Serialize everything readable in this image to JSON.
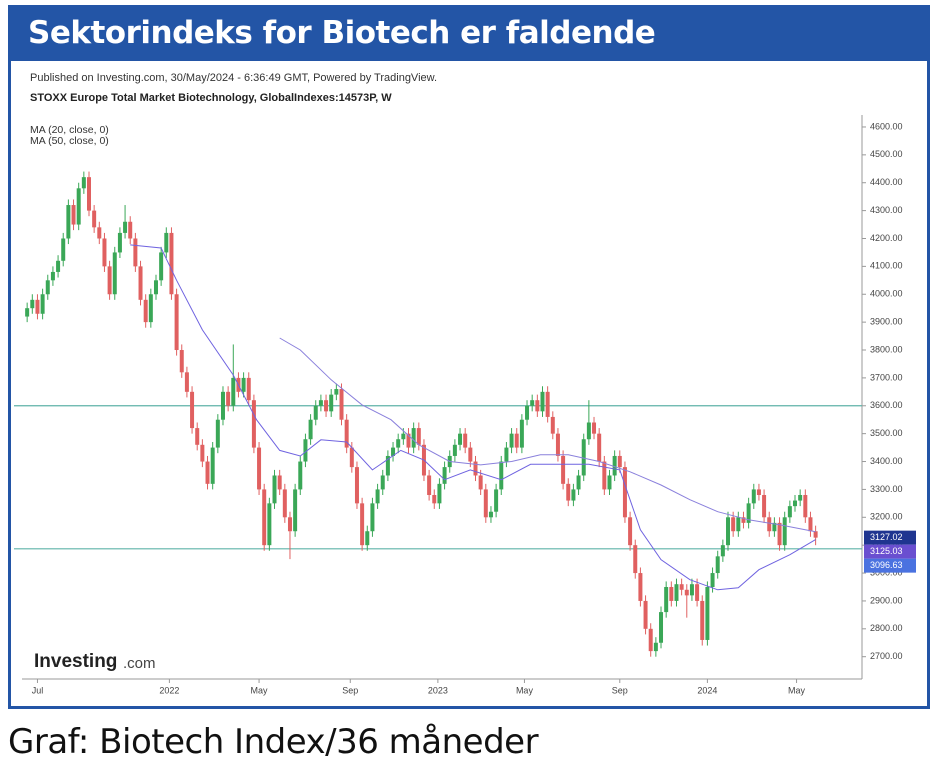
{
  "header": {
    "title": "Sektorindeks for Biotech er faldende"
  },
  "caption": "Graf: Biotech Index/36 måneder",
  "chart_data": {
    "type": "candlestick",
    "subtitle": "Published on Investing.com, 30/May/2024 - 6:36:49 GMT, Powered by TradingView.",
    "title": "STOXX Europe Total Market Biotechnology, GlobalIndexes:14573P, W",
    "logo": "Investing",
    "logo_suffix": ".com",
    "up_color": "#3aa757",
    "down_color": "#e06060",
    "xlim": [
      -1,
      162
    ],
    "ylim": [
      2620,
      4625
    ],
    "xticks": [
      {
        "value": 2,
        "label": "Jul"
      },
      {
        "value": 27.6,
        "label": "2022"
      },
      {
        "value": 45,
        "label": "May"
      },
      {
        "value": 62.7,
        "label": "Sep"
      },
      {
        "value": 79.7,
        "label": "2023"
      },
      {
        "value": 96.5,
        "label": "May"
      },
      {
        "value": 115,
        "label": "Sep"
      },
      {
        "value": 132,
        "label": "2024"
      },
      {
        "value": 149.3,
        "label": "May"
      }
    ],
    "yticks": [
      {
        "value": 2700,
        "label": "2700.00"
      },
      {
        "value": 2800,
        "label": "2800.00"
      },
      {
        "value": 2900,
        "label": "2900.00"
      },
      {
        "value": 3000,
        "label": "3000.00"
      },
      {
        "value": 3100,
        "label": "3100.00"
      },
      {
        "value": 3200,
        "label": "3200.00"
      },
      {
        "value": 3300,
        "label": "3300.00"
      },
      {
        "value": 3400,
        "label": "3400.00"
      },
      {
        "value": 3500,
        "label": "3500.00"
      },
      {
        "value": 3600,
        "label": "3600.00"
      },
      {
        "value": 3700,
        "label": "3700.00"
      },
      {
        "value": 3800,
        "label": "3800.00"
      },
      {
        "value": 3900,
        "label": "3900.00"
      },
      {
        "value": 4000,
        "label": "4000.00"
      },
      {
        "value": 4100,
        "label": "4100.00"
      },
      {
        "value": 4200,
        "label": "4200.00"
      },
      {
        "value": 4300,
        "label": "4300.00"
      },
      {
        "value": 4400,
        "label": "4400.00"
      },
      {
        "value": 4500,
        "label": "4500.00"
      },
      {
        "value": 4600,
        "label": "4600.00"
      }
    ],
    "hlines": [
      3600,
      3087
    ],
    "hline_color": "#5fb3a8",
    "price_labels": [
      {
        "value": 3127.02,
        "color": "#1f3590"
      },
      {
        "value": 3125.03,
        "color": "#6a4fd0"
      },
      {
        "value": 3096.63,
        "color": "#4a72e0"
      }
    ],
    "series": [
      {
        "name": "MA (20, close, 0)",
        "color": "#6f63e0",
        "x": [
          20,
          26,
          29,
          34,
          40,
          44.5,
          49,
          53,
          57,
          62,
          67,
          72.5,
          77,
          81,
          86,
          92,
          97.7,
          103,
          109,
          115,
          119,
          123,
          128.6,
          134,
          138,
          142,
          148,
          153
        ],
        "values": [
          4177,
          4166,
          4050,
          3872,
          3710,
          3550,
          3440,
          3420,
          3478,
          3470,
          3370,
          3440,
          3405,
          3335,
          3370,
          3335,
          3390,
          3390,
          3390,
          3370,
          3155,
          3048,
          2976,
          2940,
          2947,
          3012,
          3066,
          3120
        ]
      },
      {
        "name": "MA (50, close, 0)",
        "color": "#8a80dc",
        "x": [
          49,
          53,
          59,
          65,
          70.6,
          76,
          82,
          88,
          94,
          99.6,
          105,
          111,
          117,
          123,
          128.6,
          134,
          140,
          146,
          153
        ],
        "values": [
          3843,
          3800,
          3693,
          3603,
          3550,
          3460,
          3400,
          3388,
          3400,
          3424,
          3424,
          3400,
          3363,
          3316,
          3263,
          3220,
          3191,
          3173,
          3148
        ]
      }
    ],
    "candles": [
      [
        3920,
        3970,
        3900,
        3950
      ],
      [
        3950,
        4000,
        3930,
        3980
      ],
      [
        3980,
        4000,
        3910,
        3930
      ],
      [
        3930,
        4020,
        3910,
        4000
      ],
      [
        4000,
        4070,
        3980,
        4050
      ],
      [
        4050,
        4100,
        4030,
        4080
      ],
      [
        4080,
        4140,
        4060,
        4120
      ],
      [
        4120,
        4220,
        4100,
        4200
      ],
      [
        4200,
        4340,
        4180,
        4320
      ],
      [
        4320,
        4340,
        4230,
        4250
      ],
      [
        4250,
        4400,
        4230,
        4380
      ],
      [
        4380,
        4440,
        4360,
        4420
      ],
      [
        4420,
        4440,
        4280,
        4300
      ],
      [
        4300,
        4320,
        4220,
        4240
      ],
      [
        4240,
        4260,
        4180,
        4200
      ],
      [
        4200,
        4220,
        4080,
        4100
      ],
      [
        4100,
        4120,
        3980,
        4000
      ],
      [
        4000,
        4170,
        3980,
        4150
      ],
      [
        4150,
        4240,
        4130,
        4220
      ],
      [
        4220,
        4320,
        4200,
        4260
      ],
      [
        4260,
        4280,
        4180,
        4200
      ],
      [
        4200,
        4220,
        4080,
        4100
      ],
      [
        4100,
        4120,
        3960,
        3980
      ],
      [
        3980,
        4000,
        3880,
        3900
      ],
      [
        3900,
        4020,
        3880,
        4000
      ],
      [
        4000,
        4070,
        3980,
        4050
      ],
      [
        4050,
        4170,
        4030,
        4150
      ],
      [
        4150,
        4240,
        4130,
        4220
      ],
      [
        4220,
        4240,
        3980,
        4000
      ],
      [
        4000,
        4020,
        3780,
        3800
      ],
      [
        3800,
        3820,
        3700,
        3720
      ],
      [
        3720,
        3740,
        3630,
        3650
      ],
      [
        3650,
        3670,
        3500,
        3520
      ],
      [
        3520,
        3540,
        3440,
        3460
      ],
      [
        3460,
        3480,
        3380,
        3400
      ],
      [
        3400,
        3420,
        3300,
        3320
      ],
      [
        3320,
        3470,
        3300,
        3450
      ],
      [
        3450,
        3570,
        3430,
        3550
      ],
      [
        3550,
        3670,
        3530,
        3650
      ],
      [
        3650,
        3670,
        3580,
        3600
      ],
      [
        3600,
        3820,
        3580,
        3700
      ],
      [
        3700,
        3720,
        3630,
        3650
      ],
      [
        3650,
        3720,
        3630,
        3700
      ],
      [
        3700,
        3720,
        3600,
        3620
      ],
      [
        3620,
        3640,
        3430,
        3450
      ],
      [
        3450,
        3470,
        3280,
        3300
      ],
      [
        3300,
        3320,
        3080,
        3100
      ],
      [
        3100,
        3270,
        3080,
        3250
      ],
      [
        3250,
        3370,
        3230,
        3350
      ],
      [
        3350,
        3370,
        3280,
        3300
      ],
      [
        3300,
        3320,
        3180,
        3200
      ],
      [
        3200,
        3220,
        3050,
        3150
      ],
      [
        3150,
        3320,
        3130,
        3300
      ],
      [
        3300,
        3420,
        3280,
        3400
      ],
      [
        3400,
        3500,
        3380,
        3480
      ],
      [
        3480,
        3570,
        3460,
        3550
      ],
      [
        3550,
        3620,
        3530,
        3600
      ],
      [
        3600,
        3640,
        3580,
        3620
      ],
      [
        3620,
        3640,
        3560,
        3580
      ],
      [
        3580,
        3660,
        3560,
        3640
      ],
      [
        3640,
        3680,
        3620,
        3660
      ],
      [
        3660,
        3680,
        3530,
        3550
      ],
      [
        3550,
        3570,
        3430,
        3450
      ],
      [
        3450,
        3470,
        3360,
        3380
      ],
      [
        3380,
        3400,
        3230,
        3250
      ],
      [
        3250,
        3270,
        3080,
        3100
      ],
      [
        3100,
        3170,
        3080,
        3150
      ],
      [
        3150,
        3270,
        3130,
        3250
      ],
      [
        3250,
        3320,
        3230,
        3300
      ],
      [
        3300,
        3370,
        3280,
        3350
      ],
      [
        3350,
        3440,
        3330,
        3420
      ],
      [
        3420,
        3470,
        3400,
        3450
      ],
      [
        3450,
        3500,
        3430,
        3480
      ],
      [
        3480,
        3520,
        3460,
        3500
      ],
      [
        3500,
        3520,
        3430,
        3450
      ],
      [
        3450,
        3540,
        3430,
        3520
      ],
      [
        3520,
        3540,
        3440,
        3460
      ],
      [
        3460,
        3480,
        3330,
        3350
      ],
      [
        3350,
        3370,
        3260,
        3280
      ],
      [
        3280,
        3300,
        3230,
        3250
      ],
      [
        3250,
        3340,
        3230,
        3320
      ],
      [
        3320,
        3400,
        3300,
        3380
      ],
      [
        3380,
        3440,
        3360,
        3420
      ],
      [
        3420,
        3480,
        3400,
        3460
      ],
      [
        3460,
        3520,
        3440,
        3500
      ],
      [
        3500,
        3520,
        3430,
        3450
      ],
      [
        3450,
        3470,
        3380,
        3400
      ],
      [
        3400,
        3420,
        3330,
        3350
      ],
      [
        3350,
        3370,
        3280,
        3300
      ],
      [
        3300,
        3320,
        3180,
        3200
      ],
      [
        3200,
        3240,
        3180,
        3220
      ],
      [
        3220,
        3320,
        3200,
        3300
      ],
      [
        3300,
        3420,
        3280,
        3400
      ],
      [
        3400,
        3470,
        3380,
        3450
      ],
      [
        3450,
        3520,
        3430,
        3500
      ],
      [
        3500,
        3520,
        3430,
        3450
      ],
      [
        3450,
        3570,
        3430,
        3550
      ],
      [
        3550,
        3620,
        3530,
        3600
      ],
      [
        3600,
        3640,
        3580,
        3620
      ],
      [
        3620,
        3640,
        3560,
        3580
      ],
      [
        3580,
        3670,
        3560,
        3650
      ],
      [
        3650,
        3670,
        3540,
        3560
      ],
      [
        3560,
        3580,
        3480,
        3500
      ],
      [
        3500,
        3520,
        3400,
        3420
      ],
      [
        3420,
        3440,
        3300,
        3320
      ],
      [
        3320,
        3340,
        3240,
        3260
      ],
      [
        3260,
        3320,
        3240,
        3300
      ],
      [
        3300,
        3370,
        3280,
        3350
      ],
      [
        3350,
        3500,
        3330,
        3480
      ],
      [
        3480,
        3620,
        3460,
        3540
      ],
      [
        3540,
        3560,
        3480,
        3500
      ],
      [
        3500,
        3520,
        3380,
        3400
      ],
      [
        3400,
        3420,
        3280,
        3300
      ],
      [
        3300,
        3370,
        3280,
        3350
      ],
      [
        3350,
        3440,
        3330,
        3420
      ],
      [
        3420,
        3440,
        3360,
        3380
      ],
      [
        3380,
        3400,
        3180,
        3200
      ],
      [
        3200,
        3220,
        3080,
        3100
      ],
      [
        3100,
        3120,
        2980,
        3000
      ],
      [
        3000,
        3020,
        2880,
        2900
      ],
      [
        2900,
        2920,
        2780,
        2800
      ],
      [
        2800,
        2820,
        2700,
        2720
      ],
      [
        2720,
        2770,
        2700,
        2750
      ],
      [
        2750,
        2880,
        2730,
        2860
      ],
      [
        2860,
        2970,
        2840,
        2950
      ],
      [
        2950,
        2970,
        2880,
        2900
      ],
      [
        2900,
        2980,
        2880,
        2960
      ],
      [
        2960,
        2980,
        2920,
        2940
      ],
      [
        2940,
        2960,
        2840,
        2920
      ],
      [
        2920,
        2980,
        2900,
        2960
      ],
      [
        2960,
        2980,
        2880,
        2900
      ],
      [
        2900,
        2920,
        2740,
        2760
      ],
      [
        2760,
        2970,
        2740,
        2950
      ],
      [
        2950,
        3020,
        2930,
        3000
      ],
      [
        3000,
        3080,
        2980,
        3060
      ],
      [
        3060,
        3120,
        3040,
        3100
      ],
      [
        3100,
        3220,
        3080,
        3200
      ],
      [
        3200,
        3220,
        3130,
        3150
      ],
      [
        3150,
        3220,
        3130,
        3200
      ],
      [
        3200,
        3220,
        3160,
        3180
      ],
      [
        3180,
        3270,
        3160,
        3250
      ],
      [
        3250,
        3320,
        3230,
        3300
      ],
      [
        3300,
        3320,
        3260,
        3280
      ],
      [
        3280,
        3300,
        3180,
        3200
      ],
      [
        3200,
        3220,
        3130,
        3150
      ],
      [
        3150,
        3200,
        3130,
        3180
      ],
      [
        3180,
        3200,
        3080,
        3100
      ],
      [
        3100,
        3220,
        3080,
        3200
      ],
      [
        3200,
        3260,
        3180,
        3240
      ],
      [
        3240,
        3280,
        3220,
        3260
      ],
      [
        3260,
        3300,
        3240,
        3280
      ],
      [
        3280,
        3300,
        3180,
        3200
      ],
      [
        3200,
        3220,
        3130,
        3150
      ],
      [
        3150,
        3170,
        3100,
        3127
      ]
    ]
  }
}
